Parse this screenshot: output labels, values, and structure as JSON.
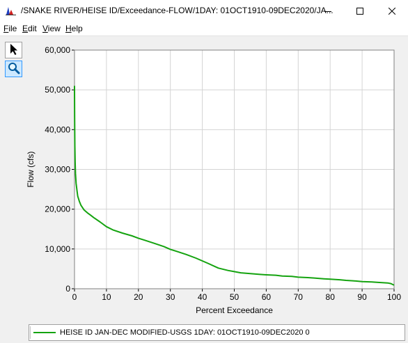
{
  "window": {
    "title": "/SNAKE RIVER/HEISE ID/Exceedance-FLOW/1DAY: 01OCT1910-09DEC2020/JA...",
    "icon": "hec-dssvue-chart-icon",
    "controls": [
      "minimize-icon",
      "maximize-icon",
      "close-icon"
    ]
  },
  "menu": [
    {
      "label": "File",
      "mnemonic": "F",
      "rest": "ile"
    },
    {
      "label": "Edit",
      "mnemonic": "E",
      "rest": "dit"
    },
    {
      "label": "View",
      "mnemonic": "V",
      "rest": "iew"
    },
    {
      "label": "Help",
      "mnemonic": "H",
      "rest": "elp"
    }
  ],
  "tools": [
    {
      "name": "pointer-tool",
      "icon": "arrow-pointer-icon",
      "selected": false
    },
    {
      "name": "zoom-tool",
      "icon": "magnifier-icon",
      "selected": true
    }
  ],
  "legend": {
    "label": "HEISE ID JAN-DEC MODIFIED-USGS 1DAY: 01OCT1910-09DEC2020  0",
    "color": "#14a30f"
  },
  "chart_data": {
    "type": "line",
    "title": "",
    "xlabel": "Percent Exceedance",
    "ylabel": "Flow (cfs)",
    "xlim": [
      0,
      100
    ],
    "ylim": [
      0,
      60000
    ],
    "x_ticks": [
      "0",
      "10",
      "20",
      "30",
      "40",
      "50",
      "60",
      "70",
      "80",
      "90",
      "100"
    ],
    "y_ticks": [
      "0",
      "10,000",
      "20,000",
      "30,000",
      "40,000",
      "50,000",
      "60,000"
    ],
    "grid": true,
    "legend_position": "bottom",
    "series": [
      {
        "name": "HEISE ID JAN-DEC MODIFIED-USGS 1DAY: 01OCT1910-09DEC2020  0",
        "color": "#14a30f",
        "x": [
          0,
          0.05,
          0.1,
          0.2,
          0.3,
          0.5,
          0.8,
          1,
          1.5,
          2,
          3,
          4,
          5,
          6,
          8,
          10,
          12,
          15,
          18,
          20,
          22,
          25,
          28,
          30,
          32,
          35,
          38,
          40,
          42,
          45,
          48,
          50,
          52,
          55,
          58,
          60,
          63,
          65,
          68,
          70,
          73,
          75,
          78,
          80,
          83,
          85,
          88,
          90,
          93,
          95,
          98,
          99,
          100
        ],
        "y": [
          51000,
          43000,
          36000,
          32000,
          29000,
          26500,
          24500,
          23300,
          22000,
          21000,
          19800,
          19100,
          18500,
          17900,
          16800,
          15600,
          14800,
          14000,
          13300,
          12700,
          12200,
          11400,
          10600,
          9900,
          9400,
          8600,
          7700,
          7000,
          6300,
          5200,
          4600,
          4300,
          4000,
          3800,
          3600,
          3500,
          3400,
          3200,
          3100,
          2900,
          2800,
          2700,
          2500,
          2400,
          2250,
          2100,
          1950,
          1800,
          1700,
          1600,
          1450,
          1300,
          900
        ]
      }
    ]
  }
}
